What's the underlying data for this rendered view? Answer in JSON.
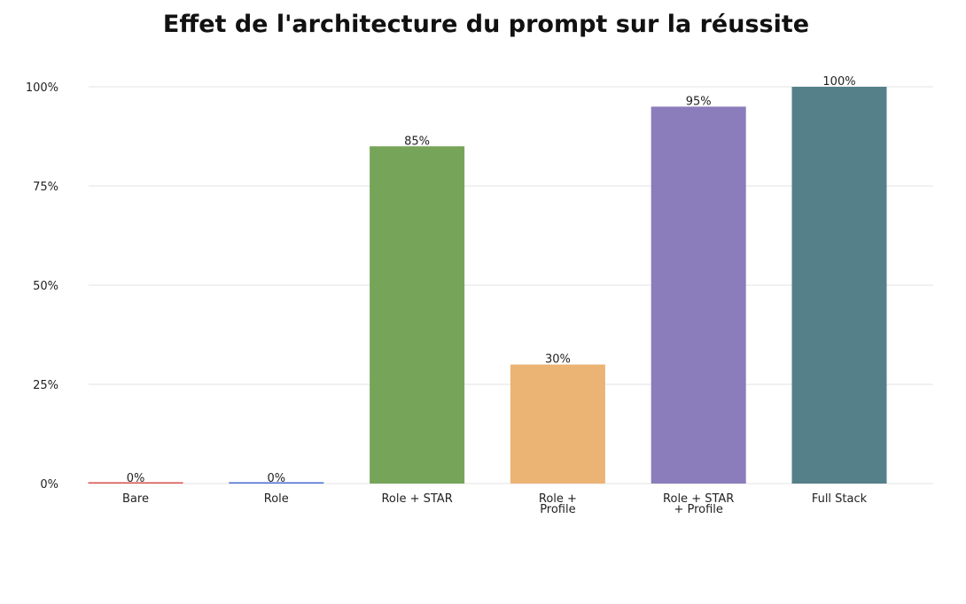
{
  "chart_data": {
    "type": "bar",
    "title": "Effet de l'architecture du prompt sur la réussite",
    "xlabel": "",
    "ylabel": "",
    "categories": [
      [
        "Bare"
      ],
      [
        "Role"
      ],
      [
        "Role + STAR"
      ],
      [
        "Role +",
        "Profile"
      ],
      [
        "Role + STAR",
        "+ Profile"
      ],
      [
        "Full Stack"
      ]
    ],
    "values": [
      0,
      0,
      85,
      30,
      95,
      100
    ],
    "value_labels": [
      "0%",
      "0%",
      "85%",
      "30%",
      "95%",
      "100%"
    ],
    "colors": [
      "#d9534f",
      "#4a6fd6",
      "#76a55a",
      "#ebb374",
      "#8b7cbb",
      "#55808a"
    ],
    "ylim": [
      0,
      100
    ],
    "yticks": [
      0,
      25,
      50,
      75,
      100
    ],
    "ytick_labels": [
      "0%",
      "25%",
      "50%",
      "75%",
      "100%"
    ],
    "grid": true,
    "legend": false
  }
}
